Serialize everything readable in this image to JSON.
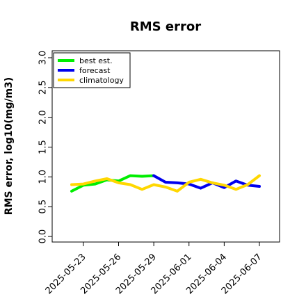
{
  "chart_data": {
    "type": "line",
    "title": "RMS error",
    "xlabel": "",
    "ylabel": "RMS error, log10(mg/m3)",
    "ylim": [
      0,
      3
    ],
    "yticks": [
      "0.0",
      "0.5",
      "1.0",
      "1.5",
      "2.0",
      "2.5",
      "3.0"
    ],
    "x_dates": [
      "2025-05-22",
      "2025-05-23",
      "2025-05-24",
      "2025-05-25",
      "2025-05-26",
      "2025-05-27",
      "2025-05-28",
      "2025-05-29",
      "2025-05-30",
      "2025-05-31",
      "2025-06-01",
      "2025-06-02",
      "2025-06-03",
      "2025-06-04",
      "2025-06-05",
      "2025-06-06",
      "2025-06-07"
    ],
    "xticks": [
      "2025-05-23",
      "2025-05-26",
      "2025-05-29",
      "2025-06-01",
      "2025-06-04",
      "2025-06-07"
    ],
    "highlight_tick": "2025-05-29",
    "highlight_color": "#228B22",
    "legend_position": "top-left",
    "series": [
      {
        "name": "best est.",
        "color": "#00ee00",
        "values": [
          0.76,
          0.86,
          0.88,
          0.95,
          0.93,
          1.02,
          1.01,
          1.02,
          null,
          null,
          null,
          null,
          null,
          null,
          null,
          null,
          null
        ]
      },
      {
        "name": "forecast",
        "color": "#0000ee",
        "values": [
          null,
          null,
          null,
          null,
          null,
          null,
          null,
          1.02,
          0.91,
          0.9,
          0.88,
          0.81,
          0.9,
          0.82,
          0.93,
          0.86,
          0.84
        ]
      },
      {
        "name": "climatology",
        "color": "#ffd700",
        "values": [
          0.87,
          0.88,
          0.93,
          0.97,
          0.9,
          0.87,
          0.79,
          0.87,
          0.83,
          0.76,
          0.91,
          0.96,
          0.9,
          0.86,
          0.79,
          0.87,
          1.02
        ]
      }
    ]
  }
}
